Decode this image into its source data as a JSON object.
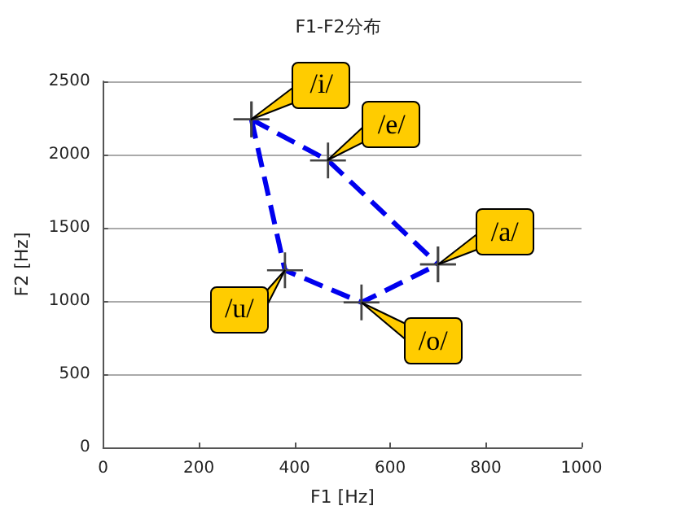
{
  "chart_data": {
    "type": "line",
    "title": "F1-F2分布",
    "xlabel": "F1 [Hz]",
    "ylabel": "F2 [Hz]",
    "series": [
      {
        "color": "#0000ee",
        "x": [
          310,
          470,
          700
        ],
        "values": [
          2240,
          1960,
          1250
        ]
      },
      {
        "color": "#0000ee",
        "x": [
          310,
          380,
          540,
          700
        ],
        "values": [
          2240,
          1210,
          990,
          1250
        ]
      }
    ],
    "xlim": [
      0,
      1000
    ],
    "xticks": [
      0,
      200,
      400,
      600,
      800,
      1000
    ],
    "ylim": [
      0,
      2500
    ],
    "yticks": [
      0,
      500,
      1000,
      1500,
      2000,
      2500
    ],
    "grid": "y",
    "marker": "cross",
    "line_style": "dashed",
    "annotations": [
      {
        "text": "/i/",
        "x": 310,
        "y": 2240
      },
      {
        "text": "/e/",
        "x": 470,
        "y": 1960
      },
      {
        "text": "/a/",
        "x": 700,
        "y": 1250
      },
      {
        "text": "/o/",
        "x": 540,
        "y": 990
      },
      {
        "text": "/u/",
        "x": 380,
        "y": 1210
      }
    ]
  }
}
